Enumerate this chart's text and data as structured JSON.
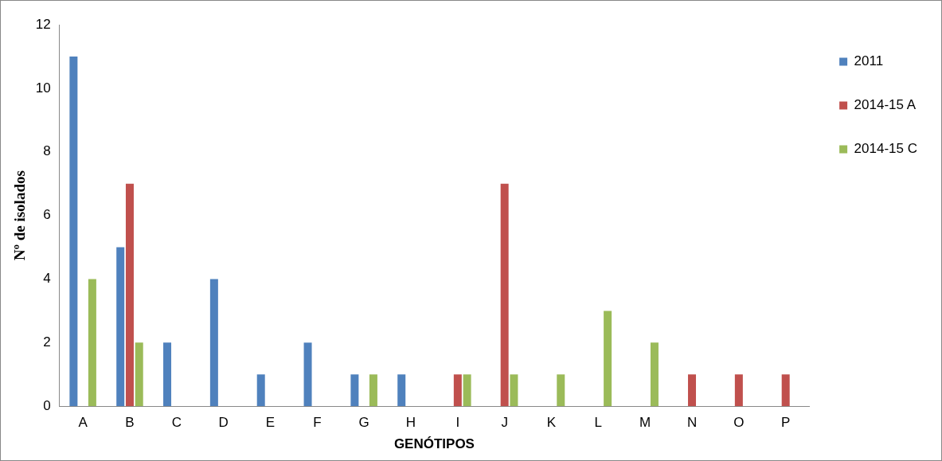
{
  "chart_data": {
    "type": "bar",
    "xlabel": "GENÓTIPOS",
    "ylabel": "Nº de isolados",
    "categories": [
      "A",
      "B",
      "C",
      "D",
      "E",
      "F",
      "G",
      "H",
      "I",
      "J",
      "K",
      "L",
      "M",
      "N",
      "O",
      "P"
    ],
    "series": [
      {
        "name": "2011",
        "color": "#4f81bd",
        "values": [
          11,
          5,
          2,
          4,
          1,
          2,
          1,
          1,
          0,
          0,
          0,
          0,
          0,
          0,
          0,
          0
        ]
      },
      {
        "name": "2014-15 A",
        "color": "#c0504d",
        "values": [
          0,
          7,
          0,
          0,
          0,
          0,
          0,
          0,
          1,
          7,
          0,
          0,
          0,
          1,
          1,
          1
        ]
      },
      {
        "name": "2014-15 C",
        "color": "#9bbb59",
        "values": [
          4,
          2,
          0,
          0,
          0,
          0,
          1,
          0,
          1,
          1,
          1,
          3,
          2,
          0,
          0,
          0
        ]
      }
    ],
    "ylim": [
      0,
      12
    ],
    "yticks": [
      0,
      2,
      4,
      6,
      8,
      10,
      12
    ],
    "grid": false,
    "legend": "top right"
  }
}
